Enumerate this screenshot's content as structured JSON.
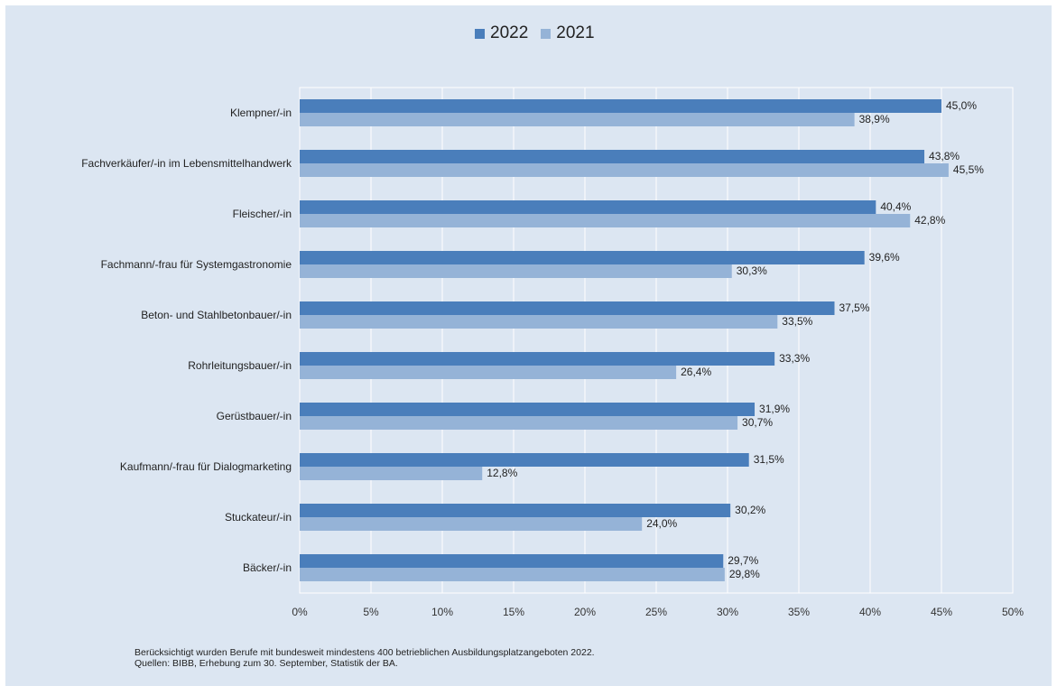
{
  "chart_data": {
    "type": "bar",
    "orientation": "horizontal",
    "categories": [
      "Klempner/-in",
      "Fachverkäufer/-in im Lebensmittelhandwerk",
      "Fleischer/-in",
      "Fachmann/-frau für Systemgastronomie",
      "Beton- und Stahlbetonbauer/-in",
      "Rohrleitungsbauer/-in",
      "Gerüstbauer/-in",
      "Kaufmann/-frau für Dialogmarketing",
      "Stuckateur/-in",
      "Bäcker/-in"
    ],
    "series": [
      {
        "name": "2022",
        "color": "#4a7ebb",
        "values": [
          45.0,
          43.8,
          40.4,
          39.6,
          37.5,
          33.3,
          31.9,
          31.5,
          30.2,
          29.7
        ],
        "labels": [
          "45,0%",
          "43,8%",
          "40,4%",
          "39,6%",
          "37,5%",
          "33,3%",
          "31,9%",
          "31,5%",
          "30,2%",
          "29,7%"
        ]
      },
      {
        "name": "2021",
        "color": "#95b3d7",
        "values": [
          38.9,
          45.5,
          42.8,
          30.3,
          33.5,
          26.4,
          30.7,
          12.8,
          24.0,
          29.8
        ],
        "labels": [
          "38,9%",
          "45,5%",
          "42,8%",
          "30,3%",
          "33,5%",
          "26,4%",
          "30,7%",
          "12,8%",
          "24,0%",
          "29,8%"
        ]
      }
    ],
    "xlim": [
      0,
      50
    ],
    "x_ticks": [
      "0%",
      "5%",
      "10%",
      "15%",
      "20%",
      "25%",
      "30%",
      "35%",
      "40%",
      "45%",
      "50%"
    ],
    "grid": true,
    "legend_position": "top-center"
  },
  "footnote": {
    "line1": "Berücksichtigt wurden Berufe mit bundesweit mindestens 400 betrieblichen Ausbildungsplatzangeboten 2022.",
    "line2": "Quellen: BIBB, Erhebung zum 30. September, Statistik der BA."
  }
}
